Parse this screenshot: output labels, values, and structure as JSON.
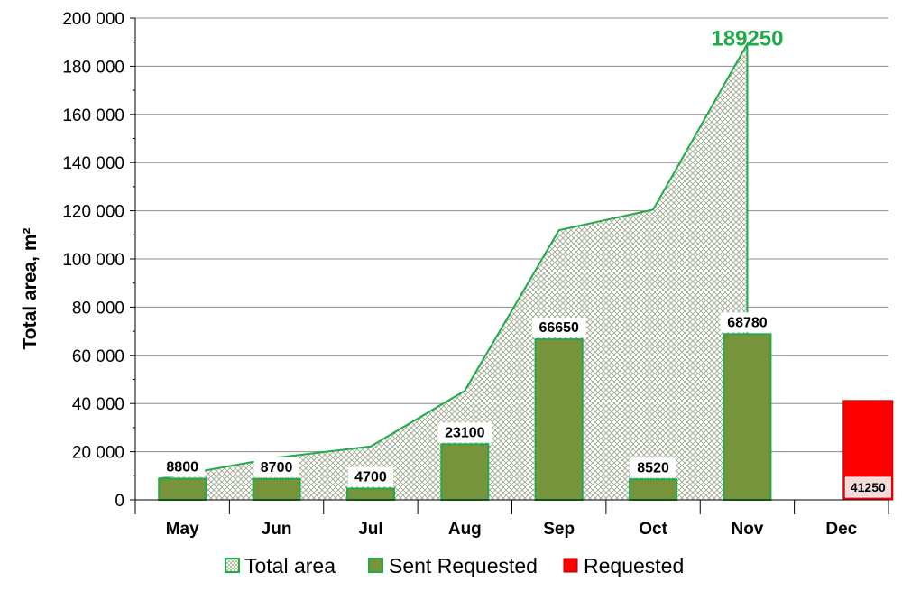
{
  "chart_data": {
    "type": "bar+area",
    "title": "",
    "ylabel": "Total area,  m²",
    "xlabel": "",
    "ylim": [
      0,
      200000
    ],
    "y_ticks": [
      0,
      20000,
      40000,
      60000,
      80000,
      100000,
      120000,
      140000,
      160000,
      180000,
      200000
    ],
    "y_tick_labels": [
      "0",
      "20 000",
      "40 000",
      "60 000",
      "80 000",
      "100 000",
      "120 000",
      "140 000",
      "160 000",
      "180 000",
      "200 000"
    ],
    "categories": [
      "May",
      "Jun",
      "Jul",
      "Aug",
      "Sep",
      "Oct",
      "Nov",
      "Dec"
    ],
    "grid": true,
    "series": [
      {
        "name": "Total area",
        "kind": "area",
        "values": [
          8800,
          17500,
          22200,
          45300,
          111950,
          120470,
          189250,
          null
        ],
        "peak_label": "189250",
        "color": "#22aa4a"
      },
      {
        "name": "Sent Requested",
        "kind": "bar",
        "values": [
          8800,
          8700,
          4700,
          23100,
          66650,
          8520,
          68780,
          null
        ],
        "data_labels": [
          "8800",
          "8700",
          "4700",
          "23100",
          "66650",
          "8520",
          "68780",
          ""
        ],
        "color": "#77933c"
      },
      {
        "name": "Requested",
        "kind": "bar",
        "values": [
          null,
          null,
          null,
          null,
          null,
          null,
          null,
          41250
        ],
        "data_labels": [
          "",
          "",
          "",
          "",
          "",
          "",
          "",
          "41250"
        ],
        "color": "#ff0000"
      }
    ],
    "legend": {
      "placement": "bottom",
      "items": [
        "Total area",
        "Sent Requested",
        "Requested"
      ]
    }
  }
}
